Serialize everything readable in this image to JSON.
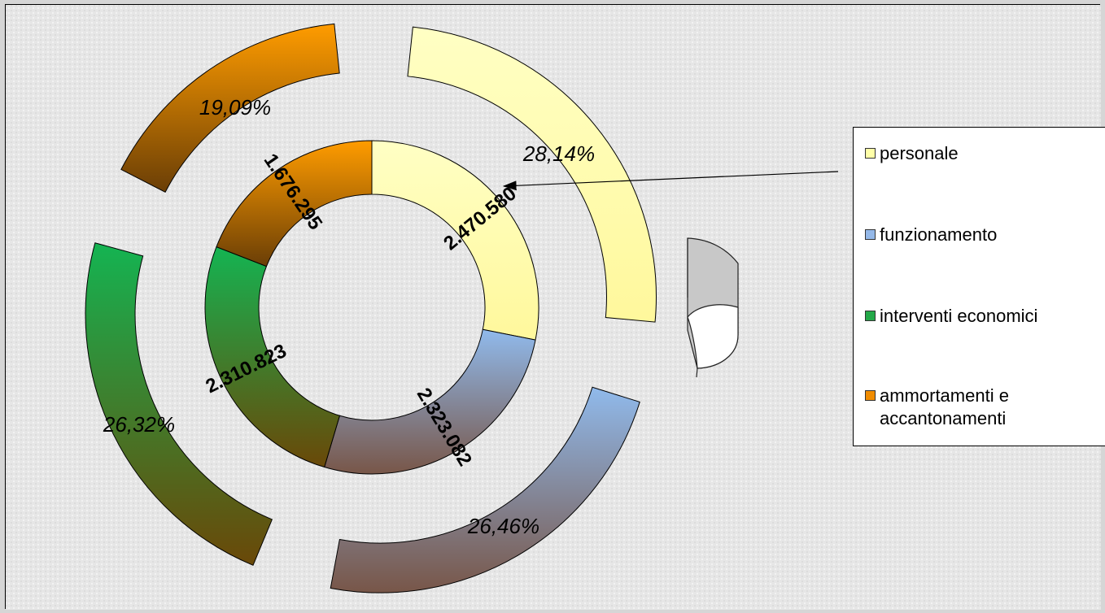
{
  "chart_data": {
    "type": "pie",
    "subtype": "exploded-doughnut",
    "categories": [
      "personale",
      "funzionamento",
      "interventi economici",
      "ammortamenti e accantonamenti"
    ],
    "series": [
      {
        "ring": "inner",
        "values": [
          2470580,
          2323082,
          2310823,
          1676295
        ],
        "labels": [
          "2.470.580",
          "2.323.082",
          "2.310.823",
          "1.676.295"
        ]
      },
      {
        "ring": "outer",
        "values": [
          28.14,
          26.46,
          26.32,
          19.09
        ],
        "labels": [
          "28,14%",
          "26,46%",
          "26,32%",
          "19,09%"
        ]
      }
    ],
    "legend": {
      "position": "right",
      "items": [
        {
          "label": "personale",
          "color": "#ffffa8"
        },
        {
          "label": "funzionamento",
          "color": "#94b8e8"
        },
        {
          "label": "interventi economici",
          "color": "#23a848"
        },
        {
          "label": "ammortamenti e\naccantonamenti",
          "color": "#f08c00"
        }
      ]
    },
    "colors": {
      "personale": [
        "#ffffc0",
        "#fffaa0"
      ],
      "funzionamento": [
        "#8fb8ea",
        "#7a5a4c"
      ],
      "interventi economici": [
        "#17b050",
        "#6b4a08"
      ],
      "ammortamenti": [
        "#ff9a00",
        "#6b3f08"
      ]
    }
  }
}
